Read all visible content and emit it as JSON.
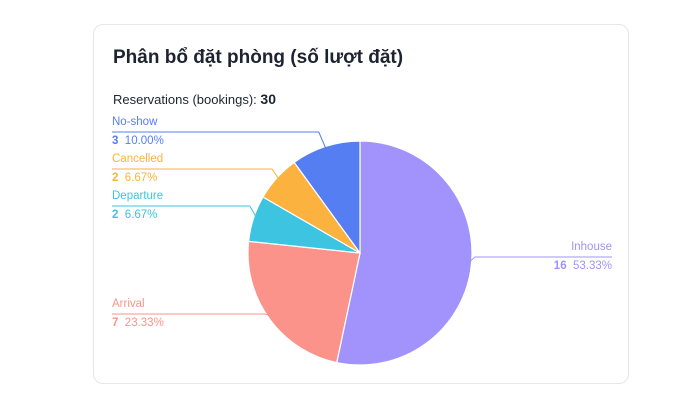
{
  "card": {
    "title": "Phân bổ đặt phòng (số lượt đặt)",
    "total_label": "Reservations (bookings):",
    "total_value": "30"
  },
  "chart_data": {
    "type": "pie",
    "title": "Phân bổ đặt phòng (số lượt đặt)",
    "start": "clockwise from 12 o'clock",
    "slices": [
      {
        "label": "Inhouse",
        "value": 16,
        "percent": "53.33%",
        "color": "#a193fb"
      },
      {
        "label": "Arrival",
        "value": 7,
        "percent": "23.33%",
        "color": "#fb938b"
      },
      {
        "label": "Departure",
        "value": 2,
        "percent": "6.67%",
        "color": "#3cc4e1"
      },
      {
        "label": "Cancelled",
        "value": 2,
        "percent": "6.67%",
        "color": "#fbb23e"
      },
      {
        "label": "No-show",
        "value": 3,
        "percent": "10.00%",
        "color": "#547ef1"
      }
    ]
  }
}
